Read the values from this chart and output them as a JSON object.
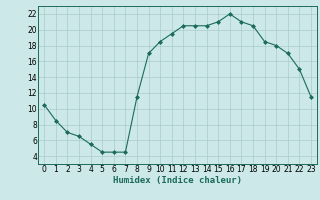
{
  "x": [
    0,
    1,
    2,
    3,
    4,
    5,
    6,
    7,
    8,
    9,
    10,
    11,
    12,
    13,
    14,
    15,
    16,
    17,
    18,
    19,
    20,
    21,
    22,
    23
  ],
  "y": [
    10.5,
    8.5,
    7.0,
    6.5,
    5.5,
    4.5,
    4.5,
    4.5,
    11.5,
    17.0,
    18.5,
    19.5,
    20.5,
    20.5,
    20.5,
    21.0,
    22.0,
    21.0,
    20.5,
    18.5,
    18.0,
    17.0,
    15.0,
    11.5
  ],
  "line_color": "#1a6b5a",
  "marker": "D",
  "marker_size": 2,
  "bg_color": "#cce8e8",
  "grid_color": "#aacccc",
  "xlabel": "Humidex (Indice chaleur)",
  "xlim": [
    -0.5,
    23.5
  ],
  "ylim": [
    3,
    23
  ],
  "yticks": [
    4,
    6,
    8,
    10,
    12,
    14,
    16,
    18,
    20,
    22
  ],
  "xticks": [
    0,
    1,
    2,
    3,
    4,
    5,
    6,
    7,
    8,
    9,
    10,
    11,
    12,
    13,
    14,
    15,
    16,
    17,
    18,
    19,
    20,
    21,
    22,
    23
  ],
  "label_fontsize": 6.5,
  "tick_fontsize": 5.5
}
